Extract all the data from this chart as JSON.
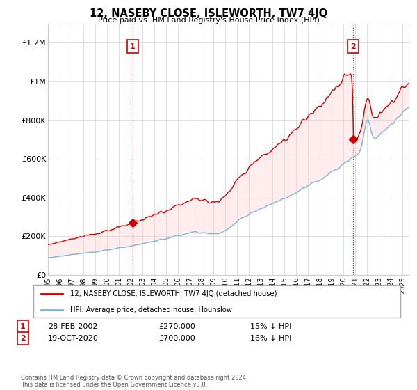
{
  "title": "12, NASEBY CLOSE, ISLEWORTH, TW7 4JQ",
  "subtitle": "Price paid vs. HM Land Registry's House Price Index (HPI)",
  "ylabel_ticks": [
    "£0",
    "£200K",
    "£400K",
    "£600K",
    "£800K",
    "£1M",
    "£1.2M"
  ],
  "ylim": [
    0,
    1300000
  ],
  "xlim_start": 1995.0,
  "xlim_end": 2025.5,
  "hpi_color": "#7ab8d9",
  "hpi_fill_color": "#d0e8f5",
  "price_color": "#cc0000",
  "purchase1_x": 2002.167,
  "purchase1_y": 270000,
  "purchase2_x": 2020.8,
  "purchase2_y": 700000,
  "vline_color": "#cc0000",
  "vline_style": ":",
  "legend_label_red": "12, NASEBY CLOSE, ISLEWORTH, TW7 4JQ (detached house)",
  "legend_label_blue": "HPI: Average price, detached house, Hounslow",
  "footnote": "Contains HM Land Registry data © Crown copyright and database right 2024.\nThis data is licensed under the Open Government Licence v3.0.",
  "background_color": "#ffffff",
  "plot_background": "#ffffff"
}
